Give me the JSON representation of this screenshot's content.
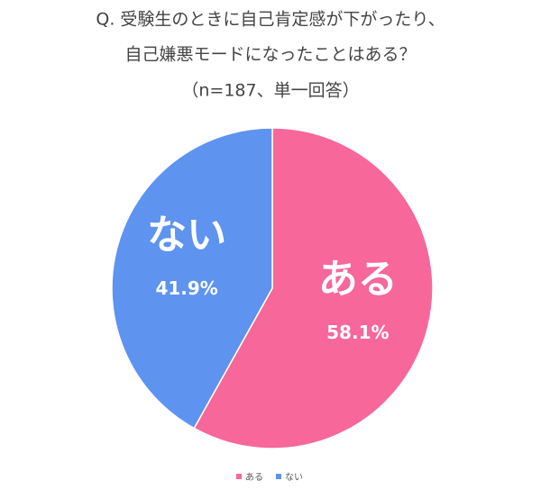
{
  "chart_data": {
    "type": "pie",
    "title": [
      "Q. 受験生のときに自己肯定感が下がったり、",
      "自己嫌悪モードになったことはある？"
    ],
    "subtitle": "（n=187、単一回答）",
    "categories": [
      "ある",
      "ない"
    ],
    "values": [
      58.1,
      41.9
    ],
    "value_labels": [
      "58.1%",
      "41.9%"
    ],
    "colors": [
      "#f7679a",
      "#5f93f0"
    ],
    "legend": "bottom"
  }
}
